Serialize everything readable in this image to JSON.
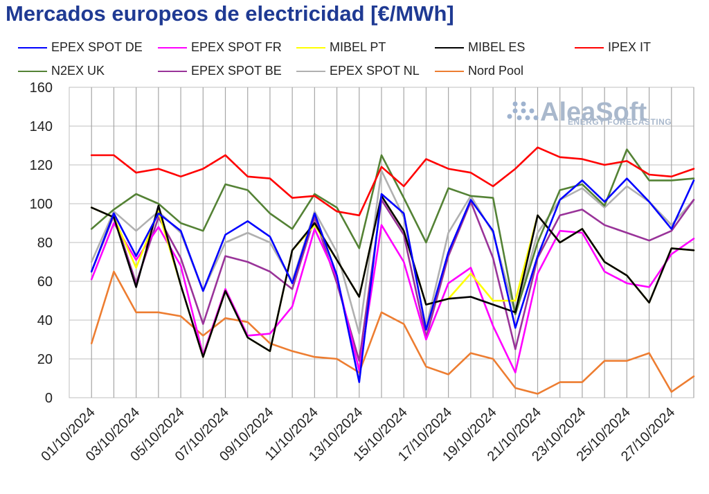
{
  "chart_data": {
    "type": "line",
    "title": "Mercados europeos de electricidad [€/MWh]",
    "xlabel": "",
    "ylabel": "",
    "ylim": [
      0,
      160
    ],
    "yticks": [
      0,
      20,
      40,
      60,
      80,
      100,
      120,
      140,
      160
    ],
    "x": [
      "01/10/2024",
      "02/10/2024",
      "03/10/2024",
      "04/10/2024",
      "05/10/2024",
      "06/10/2024",
      "07/10/2024",
      "08/10/2024",
      "09/10/2024",
      "10/10/2024",
      "11/10/2024",
      "12/10/2024",
      "13/10/2024",
      "14/10/2024",
      "15/10/2024",
      "16/10/2024",
      "17/10/2024",
      "18/10/2024",
      "19/10/2024",
      "20/10/2024",
      "21/10/2024",
      "22/10/2024",
      "23/10/2024",
      "24/10/2024",
      "25/10/2024",
      "26/10/2024",
      "27/10/2024",
      "28/10/2024"
    ],
    "xtick_labels": [
      "01/10/2024",
      "03/10/2024",
      "05/10/2024",
      "07/10/2024",
      "09/10/2024",
      "11/10/2024",
      "13/10/2024",
      "15/10/2024",
      "17/10/2024",
      "19/10/2024",
      "21/10/2024",
      "23/10/2024",
      "25/10/2024",
      "27/10/2024"
    ],
    "grid": true,
    "legend_position": "top",
    "series": [
      {
        "name": "EPEX SPOT DE",
        "color": "#0000ff",
        "values": [
          65,
          95,
          73,
          95,
          86,
          55,
          84,
          91,
          83,
          59,
          95,
          63,
          8,
          105,
          95,
          35,
          75,
          102,
          86,
          36,
          73,
          102,
          112,
          101,
          113,
          101,
          87,
          112
        ]
      },
      {
        "name": "EPEX SPOT FR",
        "color": "#ff00ff",
        "values": [
          61,
          90,
          71,
          88,
          68,
          22,
          56,
          32,
          33,
          47,
          87,
          62,
          14,
          89,
          70,
          30,
          59,
          67,
          37,
          13,
          64,
          86,
          85,
          65,
          59,
          57,
          74,
          82
        ]
      },
      {
        "name": "MIBEL PT",
        "color": "#ffff00",
        "values": [
          98,
          93,
          67,
          96,
          58,
          21,
          55,
          31,
          24,
          76,
          89,
          71,
          52,
          104,
          86,
          48,
          51,
          64,
          50,
          50,
          94,
          80,
          87,
          70,
          63,
          49,
          77,
          76
        ]
      },
      {
        "name": "MIBEL ES",
        "color": "#000000",
        "values": [
          98,
          93,
          57,
          99,
          58,
          21,
          55,
          31,
          24,
          76,
          90,
          71,
          52,
          104,
          86,
          48,
          51,
          52,
          48,
          44,
          94,
          80,
          87,
          70,
          63,
          49,
          77,
          76
        ]
      },
      {
        "name": "IPEX IT",
        "color": "#ff0000",
        "values": [
          125,
          125,
          116,
          118,
          114,
          118,
          125,
          114,
          113,
          103,
          104,
          96,
          94,
          119,
          109,
          123,
          118,
          116,
          109,
          118,
          129,
          124,
          123,
          120,
          122,
          115,
          114,
          118
        ]
      },
      {
        "name": "N2EX UK",
        "color": "#548235",
        "values": [
          87,
          97,
          105,
          100,
          90,
          86,
          110,
          107,
          95,
          87,
          105,
          98,
          77,
          125,
          103,
          80,
          108,
          104,
          103,
          43,
          80,
          107,
          110,
          99,
          128,
          112,
          112,
          113
        ]
      },
      {
        "name": "EPEX SPOT BE",
        "color": "#993399",
        "values": [
          65,
          94,
          59,
          93,
          72,
          38,
          73,
          70,
          65,
          56,
          93,
          59,
          19,
          102,
          84,
          31,
          73,
          101,
          72,
          25,
          72,
          94,
          97,
          89,
          85,
          81,
          86,
          102
        ]
      },
      {
        "name": "EPEX SPOT NL",
        "color": "#b0b0b0",
        "values": [
          70,
          96,
          86,
          96,
          85,
          55,
          80,
          85,
          80,
          60,
          96,
          75,
          33,
          117,
          93,
          36,
          85,
          104,
          85,
          43,
          85,
          102,
          108,
          98,
          109,
          101,
          89,
          102
        ]
      },
      {
        "name": "Nord Pool",
        "color": "#ed7d31",
        "values": [
          28,
          65,
          44,
          44,
          42,
          32,
          41,
          39,
          28,
          24,
          21,
          20,
          13,
          44,
          38,
          16,
          12,
          23,
          20,
          5,
          2,
          8,
          8,
          19,
          19,
          23,
          3,
          11
        ]
      }
    ]
  },
  "legend_rows": [
    [
      0,
      1,
      2,
      3,
      4
    ],
    [
      5,
      6,
      7,
      8
    ]
  ],
  "watermark": {
    "brand": "AleaSoft",
    "tagline": "ENERGY FORECASTING"
  }
}
